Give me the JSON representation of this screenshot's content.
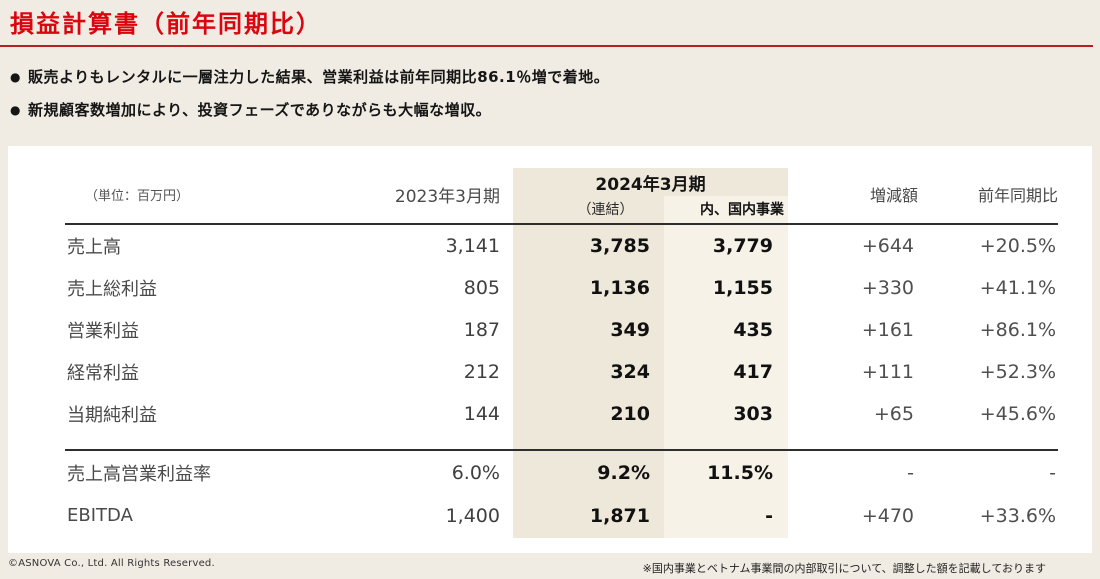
{
  "page": {
    "title": "損益計算書（前年同期比）",
    "bullet_marker": "●",
    "bullets": [
      "販売よりもレンタルに一層注力した結果、営業利益は前年同期比86.1％増で着地。",
      "新規顧客数増加により、投資フェーズでありながらも大幅な増収。"
    ]
  },
  "table": {
    "unit_label": "（単位：百万円）",
    "headers": {
      "prev_period": "2023年3月期",
      "current_period": "2024年3月期",
      "consolidated": "（連結）",
      "domestic": "内、国内事業",
      "change": "増減額",
      "yoy": "前年同期比"
    },
    "rows": [
      {
        "label": "売上高",
        "y2023": "3,141",
        "y2024c": "3,785",
        "y2024d": "3,779",
        "change": "+644",
        "yoy": "+20.5%"
      },
      {
        "label": "売上総利益",
        "y2023": "805",
        "y2024c": "1,136",
        "y2024d": "1,155",
        "change": "+330",
        "yoy": "+41.1%"
      },
      {
        "label": "営業利益",
        "y2023": "187",
        "y2024c": "349",
        "y2024d": "435",
        "change": "+161",
        "yoy": "+86.1%"
      },
      {
        "label": "経常利益",
        "y2023": "212",
        "y2024c": "324",
        "y2024d": "417",
        "change": "+111",
        "yoy": "+52.3%"
      },
      {
        "label": "当期純利益",
        "y2023": "144",
        "y2024c": "210",
        "y2024d": "303",
        "change": "+65",
        "yoy": "+45.6%"
      },
      {
        "label": "売上高営業利益率",
        "y2023": "6.0%",
        "y2024c": "9.2%",
        "y2024d": "11.5%",
        "change": "-",
        "yoy": "-"
      },
      {
        "label": "EBITDA",
        "y2023": "1,400",
        "y2024c": "1,871",
        "y2024d": "-",
        "change": "+470",
        "yoy": "+33.6%"
      }
    ]
  },
  "footer": {
    "copyright": "©ASNOVA Co., Ltd. All Rights Reserved.",
    "note": "※国内事業とベトナム事業間の内部取引について、調整した額を記載しております"
  },
  "colors": {
    "title_red": "#da060f",
    "rule_red": "#b32126",
    "page_background": "#f0ece3",
    "card_background": "#ffffff",
    "highlight_consolidated": "#eee8db",
    "highlight_domestic": "#f6f2e8"
  }
}
